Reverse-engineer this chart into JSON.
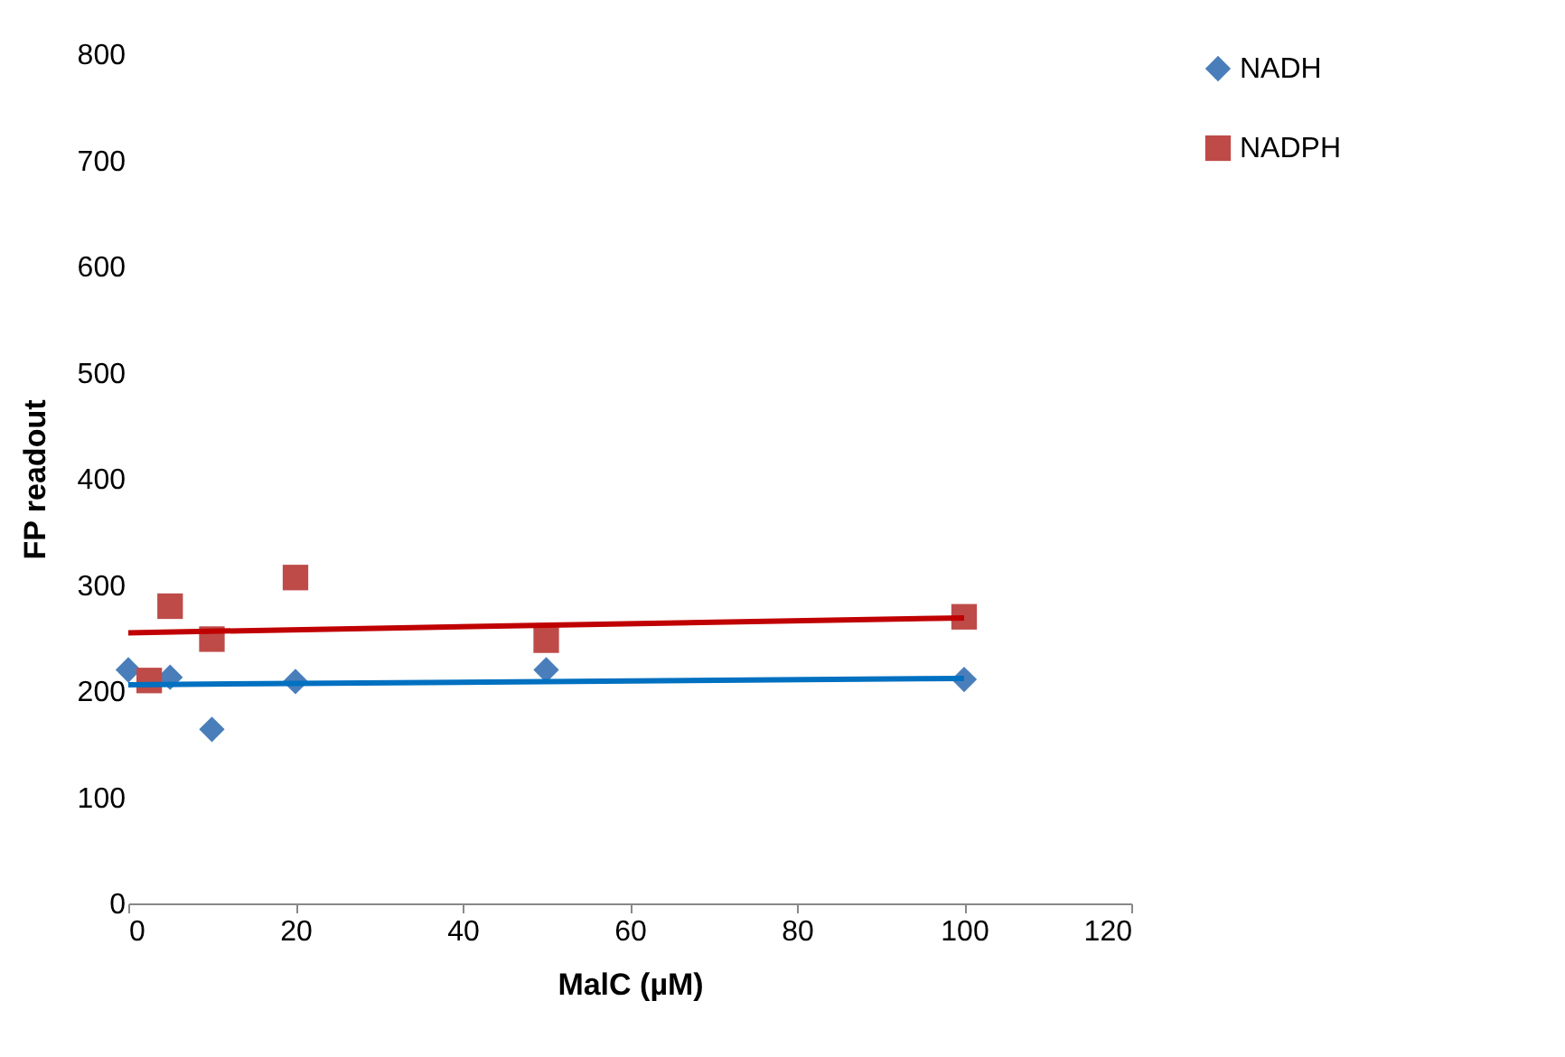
{
  "chart_data": {
    "type": "scatter",
    "xlabel": "MalC (µM)",
    "ylabel": "FP readout",
    "xlim": [
      0,
      120
    ],
    "ylim": [
      0,
      800
    ],
    "xticks": [
      0,
      20,
      40,
      60,
      80,
      100,
      120
    ],
    "yticks": [
      0,
      100,
      200,
      300,
      400,
      500,
      600,
      700,
      800
    ],
    "grid": false,
    "legend": "right",
    "series": [
      {
        "name": "NADH",
        "color": "#4a7ebb",
        "marker": "diamond",
        "x": [
          0,
          5,
          10,
          20,
          50,
          100
        ],
        "values": [
          220,
          213,
          164,
          209,
          220,
          211
        ]
      },
      {
        "name": "NADPH",
        "color": "#be4b48",
        "marker": "square",
        "x": [
          2.5,
          5,
          10,
          20,
          50,
          100
        ],
        "values": [
          210,
          280,
          249,
          307,
          248,
          270
        ]
      },
      {
        "type": "line",
        "color": "#0070c0",
        "x": [
          0,
          100
        ],
        "values": [
          206,
          212
        ]
      },
      {
        "type": "line",
        "color": "#c00000",
        "x": [
          0,
          100
        ],
        "values": [
          255,
          269
        ]
      }
    ]
  }
}
